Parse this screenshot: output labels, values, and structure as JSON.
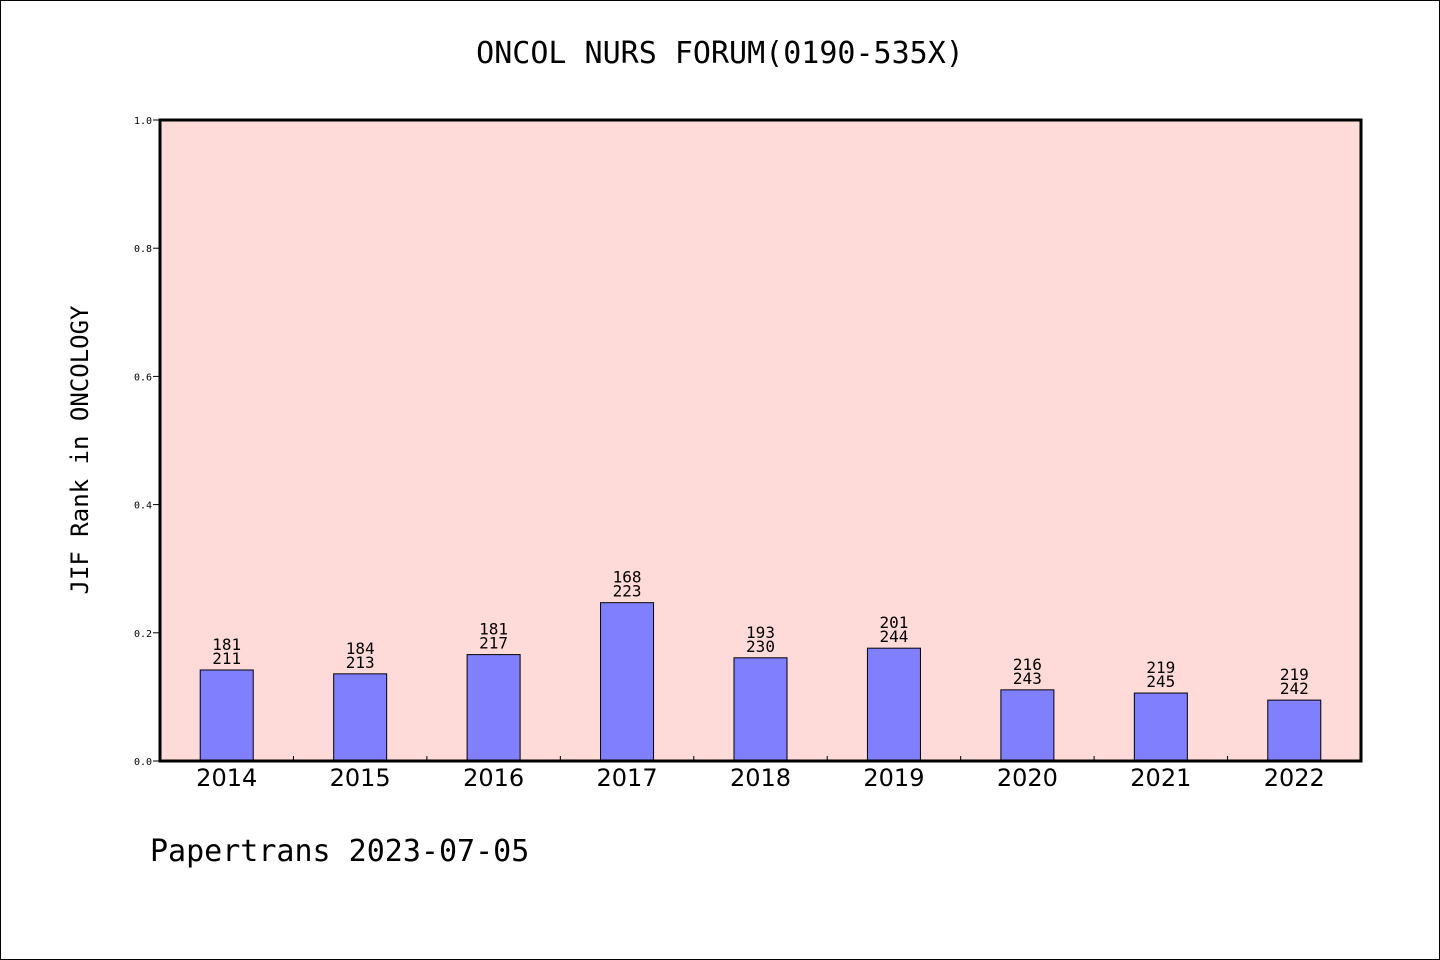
{
  "chart_data": {
    "type": "bar",
    "title": "ONCOL NURS FORUM(0190-535X)",
    "xlabel": "",
    "ylabel": "JIF Rank in ONCOLOGY",
    "ylim": [
      0,
      1.0
    ],
    "yticks": [
      "0.0",
      "0.2",
      "0.4",
      "0.6",
      "0.8",
      "1.0"
    ],
    "categories": [
      "2014",
      "2015",
      "2016",
      "2017",
      "2018",
      "2019",
      "2020",
      "2021",
      "2022"
    ],
    "values": [
      0.142,
      0.136,
      0.166,
      0.247,
      0.161,
      0.176,
      0.111,
      0.106,
      0.095
    ],
    "labels_top": [
      "181",
      "184",
      "181",
      "168",
      "193",
      "201",
      "216",
      "219",
      "219"
    ],
    "labels_bottom": [
      "211",
      "213",
      "217",
      "223",
      "230",
      "244",
      "243",
      "245",
      "242"
    ],
    "grid": false,
    "colors": {
      "plot_bg": "#fedbd8",
      "bar": "#8080ff"
    }
  },
  "footer": "Papertrans 2023-07-05"
}
